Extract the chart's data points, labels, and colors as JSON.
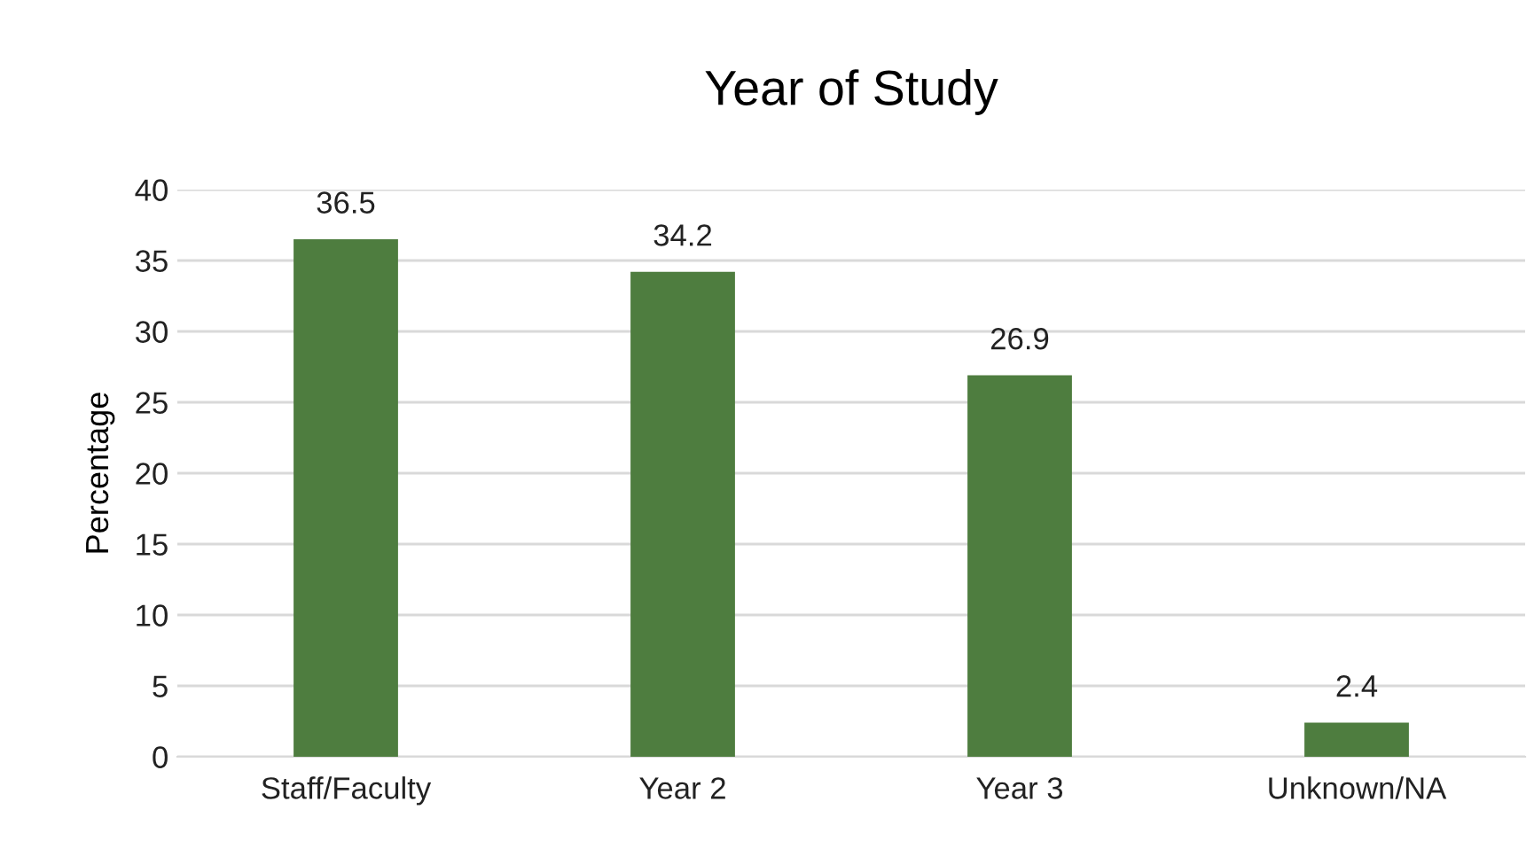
{
  "chart_data": {
    "type": "bar",
    "title": "Year of Study",
    "ylabel": "Percentage",
    "categories": [
      "Staff/Faculty",
      "Year 2",
      "Year 3",
      "Unknown/NA"
    ],
    "values": [
      36.5,
      34.2,
      26.9,
      2.4
    ],
    "color": "#4e7d3f",
    "ylim": [
      0,
      40
    ],
    "yticks": [
      0,
      5,
      10,
      15,
      20,
      25,
      30,
      35,
      40
    ],
    "grid": "y",
    "data_labels": true,
    "legend": false
  }
}
